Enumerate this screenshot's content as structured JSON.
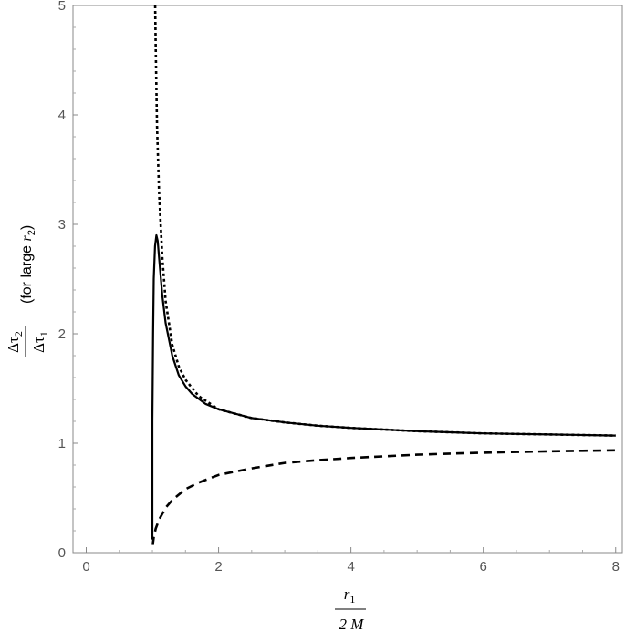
{
  "chart_data": {
    "type": "line",
    "title": "",
    "xlabel": {
      "numerator": "r",
      "numerator_sub": "1",
      "denominator": "2 M"
    },
    "ylabel": {
      "numerator": "Δτ",
      "numerator_sub": "2",
      "denominator": "Δτ",
      "denominator_sub": "1",
      "note_prefix": "(for large ",
      "note_var": "r",
      "note_sub": "2",
      "note_suffix": ")"
    },
    "xlim": [
      -0.2,
      8.1
    ],
    "ylim": [
      0,
      5
    ],
    "x_ticks": [
      0,
      2,
      4,
      6,
      8
    ],
    "y_ticks": [
      0,
      1,
      2,
      3,
      4,
      5
    ],
    "grid": false,
    "legend": "none",
    "series": [
      {
        "style": "solid",
        "color": "#000000",
        "x": [
          1.0,
          1.0,
          1.01,
          1.02,
          1.04,
          1.06,
          1.08,
          1.1,
          1.15,
          1.2,
          1.3,
          1.4,
          1.5,
          1.6,
          1.8,
          2.0,
          2.5,
          3.0,
          3.5,
          4.0,
          4.5,
          5.0,
          5.5,
          6.0,
          6.5,
          7.0,
          7.5,
          8.0
        ],
        "y": [
          0.12,
          1.2,
          2.0,
          2.5,
          2.8,
          2.9,
          2.85,
          2.7,
          2.35,
          2.1,
          1.8,
          1.62,
          1.52,
          1.45,
          1.36,
          1.31,
          1.23,
          1.19,
          1.16,
          1.14,
          1.125,
          1.11,
          1.1,
          1.09,
          1.085,
          1.08,
          1.075,
          1.07
        ]
      },
      {
        "style": "dashed",
        "color": "#000000",
        "x": [
          1.005,
          1.02,
          1.05,
          1.1,
          1.2,
          1.3,
          1.5,
          1.7,
          2.0,
          2.5,
          3.0,
          3.5,
          4.0,
          4.5,
          5.0,
          5.5,
          6.0,
          6.5,
          7.0,
          7.5,
          8.0
        ],
        "y": [
          0.07,
          0.14,
          0.22,
          0.3,
          0.41,
          0.48,
          0.58,
          0.64,
          0.71,
          0.77,
          0.82,
          0.845,
          0.865,
          0.88,
          0.895,
          0.905,
          0.913,
          0.92,
          0.926,
          0.931,
          0.935
        ]
      },
      {
        "style": "dotted",
        "color": "#000000",
        "x": [
          1.04,
          1.05,
          1.07,
          1.1,
          1.15,
          1.2,
          1.3,
          1.4,
          1.5,
          1.7,
          2.0,
          2.5,
          3.0,
          3.5,
          4.0,
          5.0,
          6.0,
          7.0,
          8.0
        ],
        "y": [
          5.1,
          4.6,
          3.9,
          3.3,
          2.7,
          2.3,
          1.9,
          1.7,
          1.58,
          1.43,
          1.31,
          1.23,
          1.19,
          1.16,
          1.14,
          1.11,
          1.09,
          1.08,
          1.07
        ]
      }
    ]
  }
}
